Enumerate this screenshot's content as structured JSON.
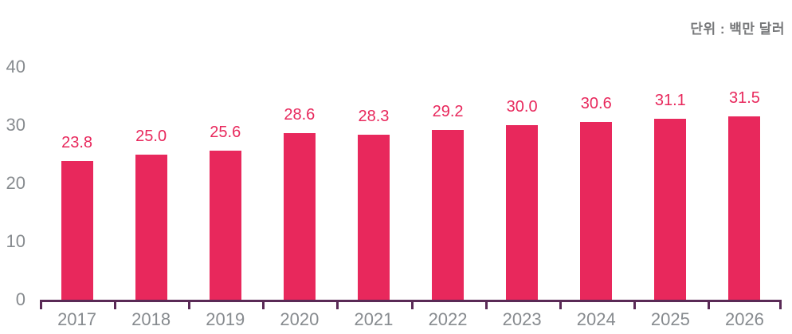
{
  "unit_label": "단위 : 백만 달러",
  "colors": {
    "bar": "#e8285c",
    "value_label": "#e8285c",
    "axis_line": "#5a2a56",
    "tick_label": "#878b8f",
    "unit_text": "#77787a",
    "background": "#ffffff"
  },
  "chart_data": {
    "type": "bar",
    "title": "",
    "xlabel": "",
    "ylabel": "",
    "unit_annotation": "단위 : 백만 달러",
    "categories": [
      "2017",
      "2018",
      "2019",
      "2020",
      "2021",
      "2022",
      "2023",
      "2024",
      "2025",
      "2026"
    ],
    "values": [
      23.8,
      25.0,
      25.6,
      28.6,
      28.3,
      29.2,
      30.0,
      30.6,
      31.1,
      31.5
    ],
    "value_labels": [
      "23.8",
      "25.0",
      "25.6",
      "28.6",
      "28.3",
      "29.2",
      "30.0",
      "30.6",
      "31.1",
      "31.5"
    ],
    "ylim": [
      0,
      40
    ],
    "yticks": [
      0,
      10,
      20,
      30,
      40
    ],
    "grid": false,
    "legend_position": "none",
    "bar_color": "#e8285c",
    "data_labels_shown": true
  }
}
